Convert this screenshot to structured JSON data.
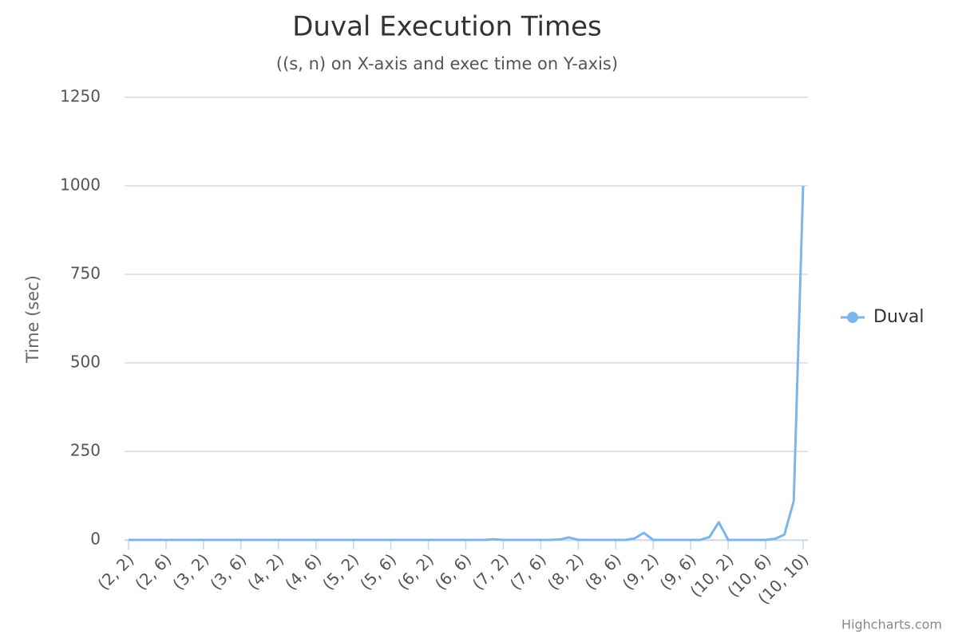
{
  "chart_data": {
    "type": "line",
    "title": "Duval Execution Times",
    "subtitle": "((s, n) on X-axis and exec time on Y-axis)",
    "y_axis_label": "Time (sec)",
    "credit": "Highcharts.com",
    "categories": [
      "(2, 2)",
      null,
      null,
      null,
      "(2, 6)",
      null,
      null,
      null,
      "(3, 2)",
      null,
      null,
      null,
      "(3, 6)",
      null,
      null,
      null,
      "(4, 2)",
      null,
      null,
      null,
      "(4, 6)",
      null,
      null,
      null,
      "(5, 2)",
      null,
      null,
      null,
      "(5, 6)",
      null,
      null,
      null,
      "(6, 2)",
      null,
      null,
      null,
      "(6, 6)",
      null,
      null,
      null,
      "(7, 2)",
      null,
      null,
      null,
      "(7, 6)",
      null,
      null,
      null,
      "(8, 2)",
      null,
      null,
      null,
      "(8, 6)",
      null,
      null,
      null,
      "(9, 2)",
      null,
      null,
      null,
      "(9, 6)",
      null,
      null,
      null,
      "(10, 2)",
      null,
      null,
      null,
      "(10, 6)",
      null,
      null,
      null,
      "(10, 10)"
    ],
    "series": [
      {
        "name": "Duval",
        "color": "#7cb5ec",
        "values": [
          0,
          0,
          0,
          0,
          0,
          0,
          0,
          0,
          0,
          0,
          0,
          0,
          0,
          0,
          0,
          0,
          0,
          0,
          0,
          0,
          0,
          0,
          0,
          0,
          0,
          0,
          0,
          0,
          0,
          0,
          0,
          0,
          0,
          0,
          0,
          0,
          0,
          0,
          0,
          2,
          0,
          0,
          0,
          0,
          0,
          0,
          1,
          7,
          0,
          0,
          0,
          0,
          0,
          0,
          4,
          20,
          0,
          0,
          0,
          0,
          0,
          0,
          8,
          50,
          0,
          0,
          0,
          0,
          0,
          3,
          15,
          110,
          1000
        ]
      }
    ],
    "ylim": [
      0,
      1250
    ],
    "yticks": [
      0,
      250,
      500,
      750,
      1000,
      1250
    ],
    "grid": true,
    "legend": "right"
  }
}
